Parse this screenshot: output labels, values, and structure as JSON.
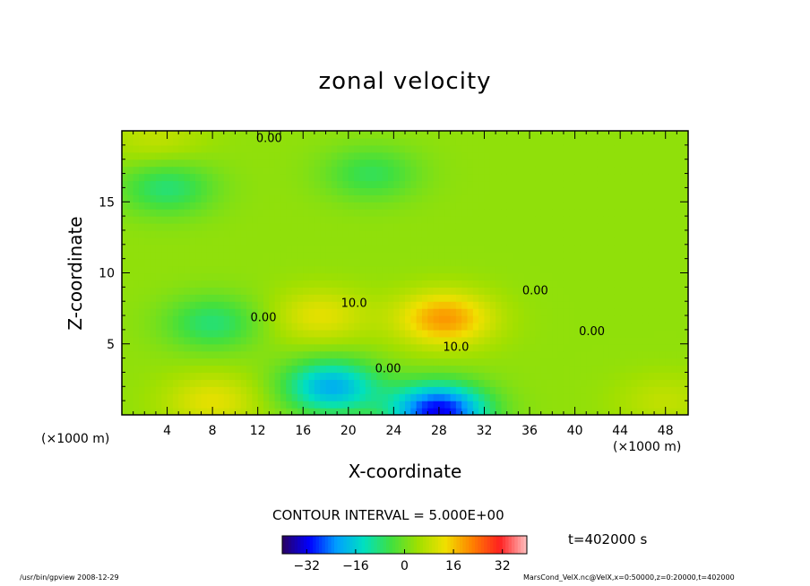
{
  "chart_data": {
    "type": "heatmap",
    "title": "zonal velocity",
    "xlabel": "X-coordinate",
    "ylabel": "Z-coordinate",
    "x_unit": "(×1000 m)",
    "x_ticks": [
      4,
      8,
      12,
      16,
      20,
      24,
      28,
      32,
      36,
      40,
      44,
      48
    ],
    "y_ticks": [
      5,
      10,
      15
    ],
    "xlim": [
      0,
      50
    ],
    "ylim": [
      0,
      20
    ],
    "contour_interval_text": "CONTOUR INTERVAL = 5.000E+00",
    "contour_labels": [
      "10.0",
      "0.00",
      "0.00",
      "10.0",
      "0.00",
      "0.00",
      "0.00"
    ],
    "time_text": "t=402000 s",
    "colorbar": {
      "range": [
        -40,
        40
      ],
      "ticks": [
        -32,
        -16,
        0,
        16,
        32
      ],
      "colormap": [
        "#2a0060",
        "#0000ff",
        "#00a0ff",
        "#00e0c0",
        "#40e040",
        "#a0e000",
        "#f0e000",
        "#ff8000",
        "#ff2020",
        "#ffc0c0"
      ]
    },
    "field_features": [
      {
        "x": 28.5,
        "z": 6.8,
        "value": 20,
        "kind": "max"
      },
      {
        "x": 17.5,
        "z": 7.0,
        "value": 12,
        "kind": "max"
      },
      {
        "x": 28.0,
        "z": 0.3,
        "value": -32,
        "kind": "min"
      },
      {
        "x": 18.5,
        "z": 2.0,
        "value": -20,
        "kind": "min"
      },
      {
        "x": 8.0,
        "z": 6.5,
        "value": -8,
        "kind": "min"
      },
      {
        "x": 8.0,
        "z": 1.0,
        "value": 12,
        "kind": "max"
      },
      {
        "x": 48.0,
        "z": 1.0,
        "value": 8,
        "kind": "max"
      },
      {
        "x": 4.0,
        "z": 16.0,
        "value": -8,
        "kind": "min"
      },
      {
        "x": 22.0,
        "z": 17.0,
        "value": -6,
        "kind": "min"
      },
      {
        "x": 3.0,
        "z": 19.5,
        "value": 8,
        "kind": "max"
      }
    ]
  },
  "footer": {
    "left": "/usr/bin/gpview   2008-12-29",
    "right": "MarsCond_VelX.nc@VelX,x=0:50000,z=0:20000,t=402000"
  }
}
